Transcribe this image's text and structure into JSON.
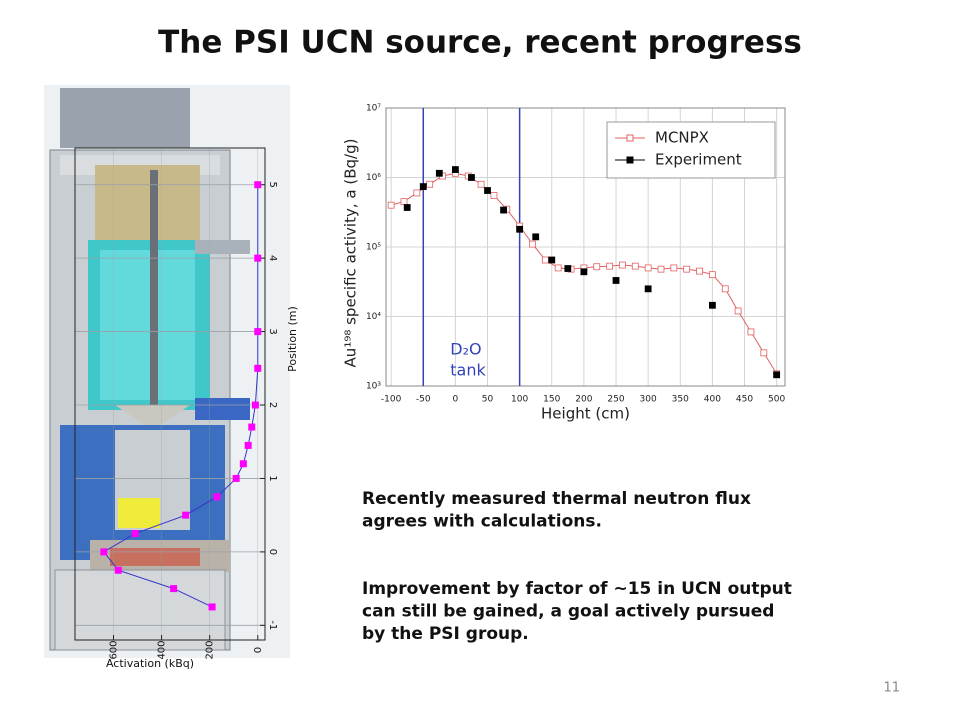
{
  "title": "The PSI UCN source, recent progress",
  "paragraphs": [
    "Recently measured thermal neutron flux agrees with calculations.",
    "Improvement by factor of ~15 in UCN output can still be gained, a goal actively pursued by the PSI group."
  ],
  "page_number": "11",
  "chart_data": [
    {
      "type": "line",
      "x_label": "Activation (kBq)",
      "y_label": "Position (m)",
      "x": [
        0,
        0,
        0,
        0,
        10,
        25,
        40,
        60,
        90,
        170,
        300,
        510,
        640,
        580,
        350,
        190
      ],
      "series": [
        {
          "color": "#ff00ff",
          "line_color": "#3333cc",
          "values": [
            5,
            4,
            3,
            2.5,
            2,
            1.7,
            1.45,
            1.2,
            1,
            0.75,
            0.5,
            0.25,
            0,
            -0.25,
            -0.5,
            -0.75
          ]
        }
      ],
      "xlim": [
        760,
        -30
      ],
      "ylim": [
        -1.2,
        5.5
      ],
      "xticks": [
        600,
        400,
        200,
        0
      ],
      "yticks": [
        -1,
        0,
        1,
        2,
        3,
        4,
        5
      ],
      "grid": true
    },
    {
      "type": "scatter",
      "x_label": "Height (cm)",
      "y_label": "Au¹⁹⁸ specific activity, a (Bq/g)",
      "y_log": true,
      "legend": "upper right",
      "series": [
        {
          "name": "MCNPX",
          "color": "#e06060",
          "marker": "open-square",
          "line": true,
          "x": [
            -100,
            -80,
            -60,
            -40,
            -20,
            0,
            20,
            40,
            60,
            80,
            100,
            120,
            140,
            160,
            180,
            200,
            220,
            240,
            260,
            280,
            300,
            320,
            340,
            360,
            380,
            400,
            420,
            440,
            460,
            480,
            500
          ],
          "values": [
            400000,
            450000,
            600000,
            800000,
            1050000,
            1150000,
            1050000,
            800000,
            550000,
            350000,
            200000,
            110000,
            65000,
            50000,
            48000,
            50000,
            52000,
            53000,
            55000,
            53000,
            50000,
            48000,
            50000,
            48000,
            45000,
            40000,
            25000,
            12000,
            6000,
            3000,
            1500
          ]
        },
        {
          "name": "Experiment",
          "color": "#000000",
          "marker": "filled-square",
          "line": false,
          "x": [
            -75,
            -50,
            -25,
            0,
            25,
            50,
            75,
            100,
            125,
            150,
            175,
            200,
            250,
            300,
            400,
            500
          ],
          "values": [
            370000,
            740000,
            1150000,
            1300000,
            1000000,
            650000,
            340000,
            180000,
            140000,
            65000,
            49000,
            44000,
            33000,
            25000,
            14500,
            1450
          ]
        }
      ],
      "vlines": [
        -50,
        100
      ],
      "vline_color": "#3344bb",
      "annotation": [
        "D₂O",
        "tank"
      ],
      "xlim": [
        -108,
        513
      ],
      "ylim": [
        1000,
        10000000
      ],
      "xticks": [
        -100,
        -50,
        0,
        50,
        100,
        150,
        200,
        250,
        300,
        350,
        400,
        450,
        500
      ],
      "yticks": [
        {
          "value": 1000,
          "label": "10³"
        },
        {
          "value": 10000,
          "label": "10⁴"
        },
        {
          "value": 100000,
          "label": "10⁵"
        },
        {
          "value": 1000000,
          "label": "10⁶"
        },
        {
          "value": 10000000,
          "label": "10⁷"
        }
      ],
      "grid": true
    }
  ]
}
